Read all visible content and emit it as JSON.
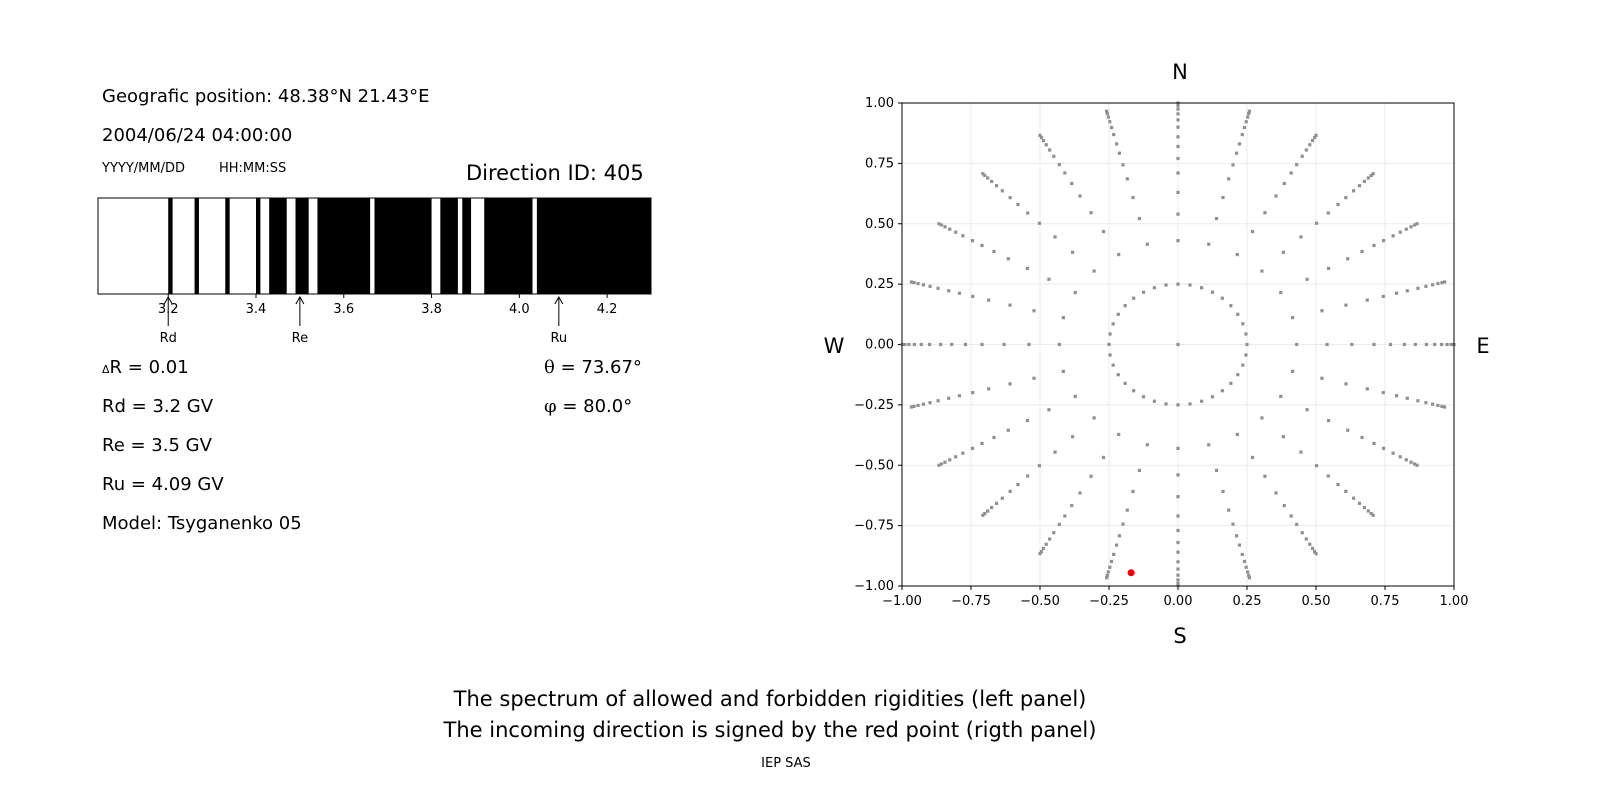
{
  "info": {
    "position": "Geografic position: 48.38°N 21.43°E",
    "datetime": "2004/06/24 04:00:00",
    "date_format": "YYYY/MM/DD",
    "time_format": "HH:MM:SS",
    "direction_id": "Direction ID: 405",
    "delta_r_symbol": "Δ",
    "delta_r": "R = 0.01",
    "rd": "Rd = 3.2 GV",
    "re": "Re = 3.5 GV",
    "ru": "Ru = 4.09 GV",
    "model": "Model: Tsyganenko 05",
    "theta_symbol": "θ",
    "theta": "= 73.67°",
    "phi_symbol": "φ",
    "phi": "= 80.0°"
  },
  "footer": {
    "line1": "The spectrum of allowed and forbidden rigidities (left panel)",
    "line2": "The incoming direction is signed by the red point (rigth panel)",
    "credit": "IEP SAS"
  },
  "chart_data": [
    {
      "type": "bar",
      "description_role": "rigidity spectrum",
      "xlim": [
        3.04,
        4.3
      ],
      "xticks": [
        "3.2",
        "3.4",
        "3.6",
        "3.8",
        "4.0",
        "4.2"
      ],
      "allowed_color": "#ffffff",
      "forbidden_color": "#000000",
      "forbidden_intervals": [
        [
          3.2,
          3.21
        ],
        [
          3.26,
          3.27
        ],
        [
          3.33,
          3.34
        ],
        [
          3.4,
          3.41
        ],
        [
          3.43,
          3.47
        ],
        [
          3.49,
          3.52
        ],
        [
          3.54,
          3.66
        ],
        [
          3.67,
          3.8
        ],
        [
          3.82,
          3.86
        ],
        [
          3.87,
          3.89
        ],
        [
          3.92,
          4.03
        ],
        [
          4.04,
          4.3
        ]
      ],
      "markers": [
        {
          "label": "Rd",
          "value": 3.2
        },
        {
          "label": "Re",
          "value": 3.5
        },
        {
          "label": "Ru",
          "value": 4.09
        }
      ]
    },
    {
      "type": "scatter",
      "xlim": [
        -1,
        1
      ],
      "ylim": [
        -1,
        1
      ],
      "ticks": [
        "−1.00",
        "−0.75",
        "−0.50",
        "−0.25",
        "0.00",
        "0.25",
        "0.50",
        "0.75",
        "1.00"
      ],
      "grid": true,
      "compass": {
        "top": "N",
        "bottom": "S",
        "left": "W",
        "right": "E"
      },
      "point_color": "#909090",
      "center_point": [
        0,
        0
      ],
      "inner_ring": {
        "r": 0.25,
        "step_deg": 10
      },
      "spokes": {
        "step_deg": 15,
        "radii": [
          0.43,
          0.54,
          0.63,
          0.71,
          0.77,
          0.82,
          0.86,
          0.9,
          0.93,
          0.955,
          0.975,
          0.99,
          1.0
        ]
      },
      "highlight": {
        "x": -0.17,
        "y": -0.945,
        "color": "#e8000b"
      }
    }
  ]
}
